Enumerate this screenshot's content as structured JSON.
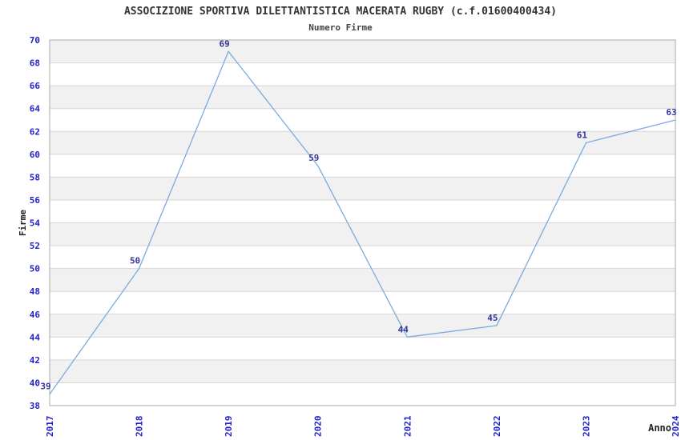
{
  "page": {
    "title": "ASSOCIZIONE SPORTIVA DILETTANTISTICA MACERATA RUGBY (c.f.01600400434)",
    "subtitle": "Numero Firme"
  },
  "chart_data": {
    "type": "line",
    "title": "ASSOCIZIONE SPORTIVA DILETTANTISTICA MACERATA RUGBY (c.f.01600400434)",
    "subtitle": "Numero Firme",
    "x": [
      2017,
      2018,
      2019,
      2020,
      2021,
      2022,
      2023,
      2024
    ],
    "values": [
      39,
      50,
      69,
      59,
      44,
      45,
      61,
      63
    ],
    "series_name": "Numero Firme",
    "xlabel": "Anno",
    "ylabel": "Firme",
    "ylim": [
      38,
      70
    ],
    "ytick_step": 2,
    "xticks": [
      "2017",
      "2018",
      "2019",
      "2020",
      "2021",
      "2022",
      "2023",
      "2024"
    ],
    "yticks": [
      "38",
      "40",
      "42",
      "44",
      "46",
      "48",
      "50",
      "52",
      "54",
      "56",
      "58",
      "60",
      "62",
      "64",
      "66",
      "68",
      "70"
    ],
    "grid": "alternating-horizontal-bands",
    "legend": "none",
    "data_labels_visible": true
  },
  "colors": {
    "line": "#7aabdf",
    "data_label": "#333399",
    "tick_label": "#2222cc",
    "axis_title": "#222222",
    "band_shaded": "#f1f1f1",
    "band_plain": "#ffffff",
    "gridline": "#d6d6d6",
    "plot_border": "#aaaaaa",
    "title_text": "#333333",
    "subtitle_text": "#444444"
  }
}
